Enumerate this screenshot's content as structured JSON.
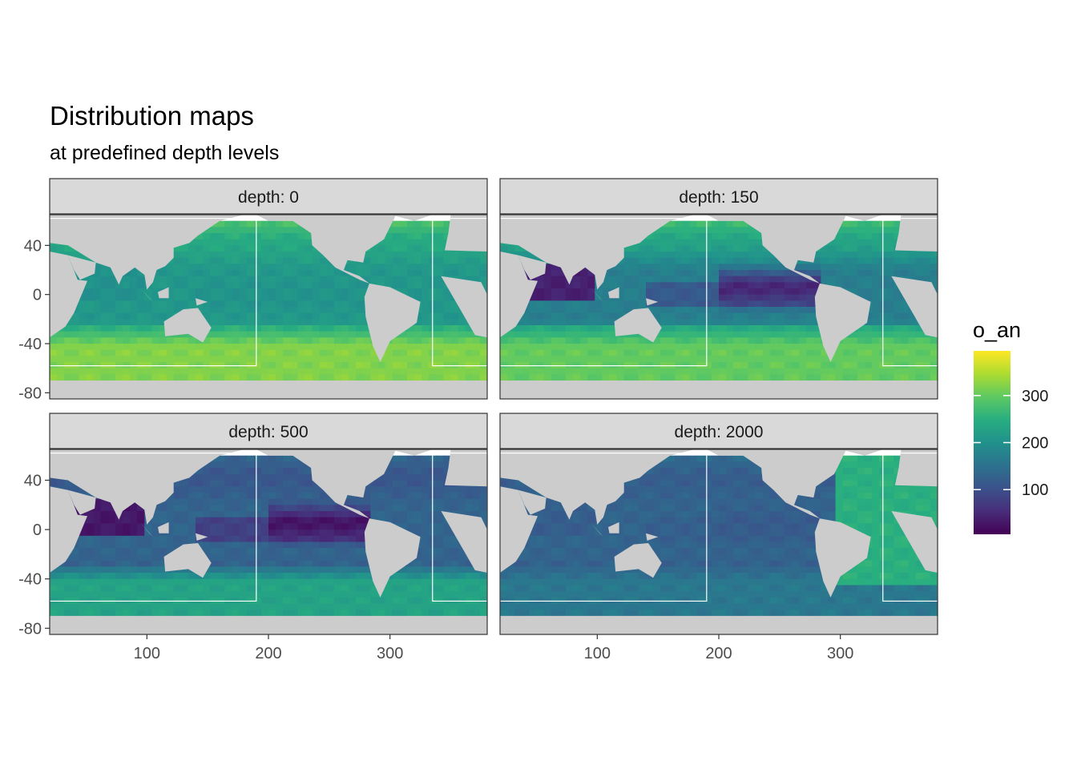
{
  "title": "Distribution maps",
  "subtitle": "at predefined depth levels",
  "colors": {
    "land": "#cccccc",
    "no_data": "#ffffff",
    "strip_bg": "#d9d9d9",
    "panel_border": "#333333",
    "box_outline": "#ffffff",
    "palette": [
      "#440154",
      "#472d7b",
      "#3b528b",
      "#2c728e",
      "#21918c",
      "#28ae80",
      "#5ec962",
      "#addc30",
      "#fde725"
    ]
  },
  "chart_data": {
    "type": "heatmap",
    "variable": "o_an",
    "xlim": [
      20,
      380
    ],
    "ylim": [
      -85,
      65
    ],
    "x_ticks": [
      100,
      200,
      300
    ],
    "y_ticks": [
      40,
      0,
      -40,
      -80
    ],
    "x_tick_labels": [
      "100",
      "200",
      "300"
    ],
    "y_tick_labels": [
      "40",
      "0",
      "-40",
      "-80"
    ],
    "legend": {
      "title": "o_an",
      "position": "right",
      "range": [
        5,
        395
      ],
      "ticks": [
        100,
        200,
        300
      ],
      "tick_labels": [
        "100",
        "200",
        "300"
      ]
    },
    "boxes": [
      {
        "lon": [
          20,
          190
        ],
        "lat": [
          -58,
          62
        ]
      },
      {
        "lon": [
          335,
          380
        ],
        "lat": [
          -58,
          62
        ]
      }
    ],
    "panels": [
      {
        "label": "depth: 0",
        "depth": 0,
        "levels": {
          "tropics": 210,
          "midlat": 240,
          "south": 320,
          "nIndian": 200,
          "eqPacific": 200,
          "omz": 210
        }
      },
      {
        "label": "depth: 150",
        "depth": 150,
        "levels": {
          "tropics": 170,
          "midlat": 230,
          "south": 300,
          "nIndian": 40,
          "eqPacific": 60,
          "omz": 20
        }
      },
      {
        "label": "depth: 500",
        "depth": 500,
        "levels": {
          "tropics": 130,
          "midlat": 110,
          "south": 230,
          "nIndian": 30,
          "eqPacific": 30,
          "omz": 10
        }
      },
      {
        "label": "depth: 2000",
        "depth": 2000,
        "levels": {
          "tropics": 130,
          "midlat": 120,
          "south": 160,
          "nIndian": 120,
          "eqPacific": 115,
          "omz": 115,
          "atlantic": 250
        }
      }
    ]
  }
}
